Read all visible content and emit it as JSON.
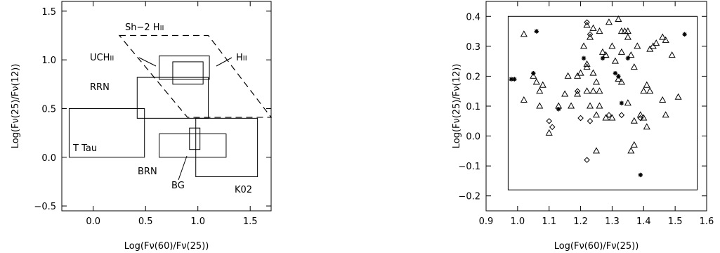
{
  "chart_data": [
    {
      "type": "diagram",
      "xlabel": "Log(Fν(60)/Fν(25))",
      "ylabel": "Log(Fν(25)/Fν(12))",
      "xlim": [
        -0.3,
        1.7
      ],
      "ylim": [
        -0.55,
        1.6
      ],
      "xticks": [
        0.0,
        0.5,
        1.0,
        1.5
      ],
      "xtick_labels": [
        "0.0",
        "0.5",
        "1.0",
        "1.5"
      ],
      "yticks": [
        -0.5,
        0.0,
        0.5,
        1.0,
        1.5
      ],
      "ytick_labels": [
        "−0.5",
        "0.0",
        "0.5",
        "1.0",
        "1.5"
      ],
      "regions": [
        {
          "label": "T Tau",
          "x0": -0.23,
          "x1": 0.49,
          "y0": 0.0,
          "y1": 0.5
        },
        {
          "label": "RRN",
          "x0": 0.42,
          "x1": 1.1,
          "y0": 0.4,
          "y1": 0.82
        },
        {
          "label": "UCHII",
          "x0": 0.63,
          "x1": 1.11,
          "y0": 0.8,
          "y1": 1.04
        },
        {
          "label": "HII",
          "x0": 0.76,
          "x1": 1.05,
          "y0": 0.75,
          "y1": 0.98
        },
        {
          "label": "BRN",
          "x0": 0.63,
          "x1": 1.27,
          "y0": 0.0,
          "y1": 0.24
        },
        {
          "label": "BG",
          "x0": 0.92,
          "x1": 1.02,
          "y0": 0.08,
          "y1": 0.3
        },
        {
          "label": "K02",
          "x0": 0.98,
          "x1": 1.57,
          "y0": -0.2,
          "y1": 0.4
        }
      ],
      "sh2_region": {
        "label": "Sh−2 HII",
        "vertices": [
          [
            0.25,
            1.25
          ],
          [
            1.1,
            1.25
          ],
          [
            1.7,
            0.41
          ],
          [
            0.9,
            0.41
          ]
        ]
      },
      "labels": {
        "sh2_main": "Sh−2 H",
        "sh2_sub": "II",
        "uch_main": "UCH",
        "uch_sub": "II",
        "hii_main": "H",
        "hii_sub": "II",
        "rrn": "RRN",
        "ttau": "T Tau",
        "brn": "BRN",
        "bg": "BG",
        "k02": "K02"
      }
    },
    {
      "type": "scatter",
      "xlabel": "Log(Fν(60)/Fν(25))",
      "ylabel": "Log(Fν(25)/Fν(12))",
      "xlim": [
        0.9,
        1.6
      ],
      "ylim": [
        -0.25,
        0.45
      ],
      "xticks": [
        0.9,
        1.0,
        1.1,
        1.2,
        1.3,
        1.4,
        1.5,
        1.6
      ],
      "xtick_labels": [
        "0.9",
        "1.0",
        "1.1",
        "1.2",
        "1.3",
        "1.4",
        "1.5",
        "1.6"
      ],
      "yticks": [
        -0.2,
        -0.1,
        0.0,
        0.1,
        0.2,
        0.3,
        0.4
      ],
      "ytick_labels": [
        "−0.2",
        "−0.1",
        "0.0",
        "0.1",
        "0.2",
        "0.3",
        "0.4"
      ],
      "k02_box": {
        "x0": 0.97,
        "x1": 1.57,
        "y0": -0.18,
        "y1": 0.4
      },
      "series": [
        {
          "marker": "triangle",
          "points": [
            [
              1.02,
              0.34
            ],
            [
              1.05,
              0.2
            ],
            [
              1.07,
              0.15
            ],
            [
              1.06,
              0.18
            ],
            [
              1.08,
              0.17
            ],
            [
              1.02,
              0.12
            ],
            [
              1.07,
              0.1
            ],
            [
              1.1,
              0.01
            ],
            [
              1.13,
              0.1
            ],
            [
              1.16,
              0.2
            ],
            [
              1.15,
              0.14
            ],
            [
              1.19,
              0.14
            ],
            [
              1.17,
              0.1
            ],
            [
              1.21,
              0.3
            ],
            [
              1.22,
              0.24
            ],
            [
              1.22,
              0.23
            ],
            [
              1.23,
              0.33
            ],
            [
              1.24,
              0.36
            ],
            [
              1.22,
              0.37
            ],
            [
              1.26,
              0.35
            ],
            [
              1.24,
              0.21
            ],
            [
              1.26,
              0.15
            ],
            [
              1.25,
              0.18
            ],
            [
              1.22,
              0.15
            ],
            [
              1.23,
              0.1
            ],
            [
              1.24,
              0.15
            ],
            [
              1.26,
              0.1
            ],
            [
              1.27,
              0.28
            ],
            [
              1.28,
              0.27
            ],
            [
              1.29,
              0.38
            ],
            [
              1.28,
              0.27
            ],
            [
              1.3,
              0.3
            ],
            [
              1.31,
              0.25
            ],
            [
              1.32,
              0.39
            ],
            [
              1.33,
              0.35
            ],
            [
              1.33,
              0.28
            ],
            [
              1.32,
              0.19
            ],
            [
              1.34,
              0.35
            ],
            [
              1.35,
              0.33
            ],
            [
              1.35,
              0.35
            ],
            [
              1.36,
              0.27
            ],
            [
              1.37,
              0.23
            ],
            [
              1.38,
              0.3
            ],
            [
              1.39,
              0.07
            ],
            [
              1.4,
              0.06
            ],
            [
              1.41,
              0.17
            ],
            [
              1.42,
              0.29
            ],
            [
              1.42,
              0.15
            ],
            [
              1.43,
              0.3
            ],
            [
              1.44,
              0.31
            ],
            [
              1.46,
              0.12
            ],
            [
              1.47,
              0.07
            ],
            [
              1.49,
              0.27
            ],
            [
              1.51,
              0.13
            ],
            [
              1.25,
              0.07
            ],
            [
              1.28,
              0.06
            ],
            [
              1.3,
              0.06
            ],
            [
              1.33,
              0.18
            ],
            [
              1.35,
              0.11
            ],
            [
              1.37,
              0.05
            ],
            [
              1.37,
              -0.03
            ],
            [
              1.36,
              -0.05
            ],
            [
              1.41,
              0.03
            ],
            [
              1.25,
              -0.05
            ],
            [
              1.19,
              0.2
            ],
            [
              1.2,
              0.21
            ],
            [
              1.32,
              0.19
            ],
            [
              1.4,
              0.15
            ],
            [
              1.46,
              0.33
            ],
            [
              1.47,
              0.32
            ]
          ]
        },
        {
          "marker": "diamond",
          "points": [
            [
              1.22,
              0.38
            ],
            [
              1.23,
              0.34
            ],
            [
              1.19,
              0.15
            ],
            [
              1.2,
              0.06
            ],
            [
              1.23,
              0.05
            ],
            [
              1.22,
              -0.08
            ],
            [
              1.29,
              0.07
            ],
            [
              1.33,
              0.07
            ],
            [
              1.39,
              0.06
            ],
            [
              1.11,
              0.03
            ],
            [
              1.1,
              0.05
            ]
          ]
        },
        {
          "marker": "asterisk",
          "points": [
            [
              0.99,
              0.19
            ],
            [
              0.98,
              0.19
            ],
            [
              1.06,
              0.35
            ],
            [
              1.05,
              0.21
            ],
            [
              1.13,
              0.09
            ],
            [
              1.21,
              0.26
            ],
            [
              1.27,
              0.26
            ],
            [
              1.32,
              0.2
            ],
            [
              1.31,
              0.21
            ],
            [
              1.33,
              0.11
            ],
            [
              1.35,
              0.26
            ],
            [
              1.53,
              0.34
            ],
            [
              1.39,
              -0.13
            ]
          ]
        }
      ]
    }
  ]
}
